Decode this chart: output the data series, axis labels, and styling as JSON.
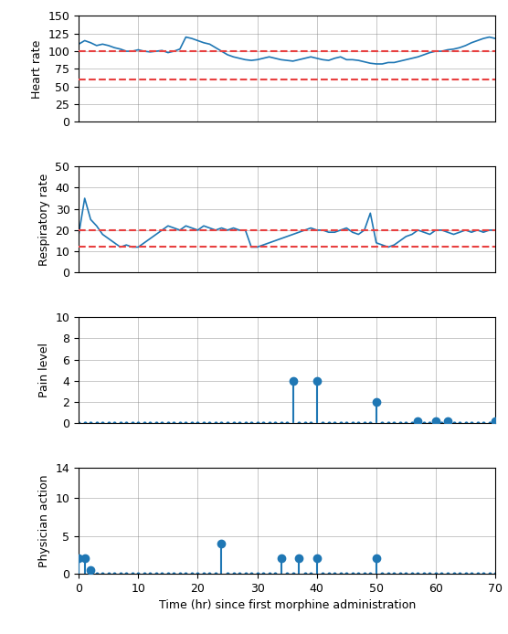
{
  "heart_rate_x": [
    0,
    1,
    2,
    3,
    4,
    5,
    6,
    7,
    8,
    9,
    10,
    11,
    12,
    13,
    14,
    15,
    16,
    17,
    18,
    19,
    20,
    21,
    22,
    23,
    24,
    25,
    26,
    27,
    28,
    29,
    30,
    31,
    32,
    33,
    34,
    35,
    36,
    37,
    38,
    39,
    40,
    41,
    42,
    43,
    44,
    45,
    46,
    47,
    48,
    49,
    50,
    51,
    52,
    53,
    54,
    55,
    56,
    57,
    58,
    59,
    60,
    61,
    62,
    63,
    64,
    65,
    66,
    67,
    68,
    69,
    70
  ],
  "heart_rate_y": [
    110,
    115,
    112,
    108,
    110,
    108,
    105,
    103,
    100,
    100,
    102,
    100,
    99,
    100,
    101,
    98,
    100,
    103,
    120,
    118,
    115,
    112,
    110,
    105,
    100,
    95,
    92,
    90,
    88,
    87,
    88,
    90,
    92,
    90,
    88,
    87,
    86,
    88,
    90,
    92,
    90,
    88,
    87,
    90,
    92,
    88,
    88,
    87,
    85,
    83,
    82,
    82,
    84,
    84,
    86,
    88,
    90,
    92,
    95,
    98,
    100,
    100,
    102,
    103,
    105,
    108,
    112,
    115,
    118,
    120,
    118
  ],
  "heart_rate_upper": 100,
  "heart_rate_lower": 60,
  "heart_rate_ylim": [
    0,
    150
  ],
  "heart_rate_yticks": [
    0,
    25,
    50,
    75,
    100,
    125,
    150
  ],
  "resp_rate_x": [
    0,
    1,
    2,
    3,
    4,
    5,
    6,
    7,
    8,
    9,
    10,
    11,
    12,
    13,
    14,
    15,
    16,
    17,
    18,
    19,
    20,
    21,
    22,
    23,
    24,
    25,
    26,
    27,
    28,
    29,
    30,
    31,
    32,
    33,
    34,
    35,
    36,
    37,
    38,
    39,
    40,
    41,
    42,
    43,
    44,
    45,
    46,
    47,
    48,
    49,
    50,
    51,
    52,
    53,
    54,
    55,
    56,
    57,
    58,
    59,
    60,
    61,
    62,
    63,
    64,
    65,
    66,
    67,
    68,
    69,
    70
  ],
  "resp_rate_y": [
    18,
    35,
    25,
    22,
    18,
    16,
    14,
    12,
    13,
    12,
    12,
    14,
    16,
    18,
    20,
    22,
    21,
    20,
    22,
    21,
    20,
    22,
    21,
    20,
    21,
    20,
    21,
    20,
    20,
    12,
    12,
    13,
    14,
    15,
    16,
    17,
    18,
    19,
    20,
    21,
    20,
    20,
    19,
    19,
    20,
    21,
    19,
    18,
    20,
    28,
    14,
    13,
    12,
    13,
    15,
    17,
    18,
    20,
    19,
    18,
    20,
    20,
    19,
    18,
    19,
    20,
    19,
    20,
    19,
    20,
    20
  ],
  "resp_rate_upper": 20,
  "resp_rate_lower": 12,
  "resp_rate_ylim": [
    0,
    50
  ],
  "resp_rate_yticks": [
    0,
    10,
    20,
    30,
    40,
    50
  ],
  "pain_x": [
    0,
    1,
    2,
    3,
    4,
    5,
    6,
    7,
    8,
    9,
    10,
    11,
    12,
    13,
    14,
    15,
    16,
    17,
    18,
    19,
    20,
    21,
    22,
    23,
    24,
    25,
    26,
    27,
    28,
    29,
    30,
    31,
    32,
    33,
    34,
    35,
    36,
    37,
    38,
    39,
    40,
    41,
    42,
    43,
    44,
    45,
    46,
    47,
    48,
    49,
    50,
    51,
    52,
    53,
    54,
    55,
    56,
    57,
    58,
    59,
    60,
    61,
    62,
    63,
    64,
    65,
    66,
    67,
    68,
    69,
    70
  ],
  "pain_y": [
    0,
    0,
    0,
    0,
    0,
    0,
    0,
    0,
    0,
    0,
    0,
    0,
    0,
    0,
    0,
    0,
    0,
    0,
    0,
    0,
    0,
    0,
    0,
    0,
    0,
    0,
    0,
    0,
    0,
    0,
    0,
    0,
    0,
    0,
    0,
    0,
    4,
    0,
    0,
    0,
    4,
    0,
    0,
    0,
    0,
    0,
    0,
    0,
    0,
    0,
    2,
    0,
    0,
    0,
    0,
    0,
    0,
    0.2,
    0,
    0,
    0.2,
    0,
    0.2,
    0,
    0,
    0,
    0,
    0,
    0,
    0,
    0.2
  ],
  "pain_ylim": [
    0,
    10
  ],
  "pain_yticks": [
    0,
    2,
    4,
    6,
    8,
    10
  ],
  "action_x": [
    0,
    1,
    2,
    3,
    4,
    5,
    6,
    7,
    8,
    9,
    10,
    11,
    12,
    13,
    14,
    15,
    16,
    17,
    18,
    19,
    20,
    21,
    22,
    23,
    24,
    25,
    26,
    27,
    28,
    29,
    30,
    31,
    32,
    33,
    34,
    35,
    36,
    37,
    38,
    39,
    40,
    41,
    42,
    43,
    44,
    45,
    46,
    47,
    48,
    49,
    50,
    51,
    52,
    53,
    54,
    55,
    56,
    57,
    58,
    59,
    60,
    61,
    62,
    63,
    64,
    65,
    66,
    67,
    68,
    69,
    70
  ],
  "action_y": [
    2,
    2,
    0.5,
    0,
    0,
    0,
    0,
    0,
    0,
    0,
    0,
    0,
    0,
    0,
    0,
    0,
    0,
    0,
    0,
    0,
    0,
    0,
    0,
    0,
    4,
    0,
    0,
    0,
    0,
    0,
    0,
    0,
    0,
    0,
    2,
    0,
    0,
    2,
    0,
    0,
    2,
    0,
    0,
    0,
    0,
    0,
    0,
    0,
    0,
    0,
    2,
    0,
    0,
    0,
    0,
    0,
    0,
    0,
    0,
    0,
    0,
    0,
    0,
    0,
    0,
    0,
    0,
    0,
    0,
    0,
    0
  ],
  "action_ylim": [
    0,
    14
  ],
  "action_yticks": [
    0,
    5,
    10,
    14
  ],
  "line_color": "#1f77b4",
  "dashed_color": "#e84040",
  "xlabel": "Time (hr) since first morphine administration",
  "ylabel_hr": "Heart rate",
  "ylabel_rr": "Respiratory rate",
  "ylabel_pain": "Pain level",
  "ylabel_action": "Physician action",
  "xlim": [
    0,
    70
  ],
  "xticks": [
    0,
    10,
    20,
    30,
    40,
    50,
    60,
    70
  ],
  "figsize": [
    5.56,
    6.94
  ],
  "dpi": 100
}
